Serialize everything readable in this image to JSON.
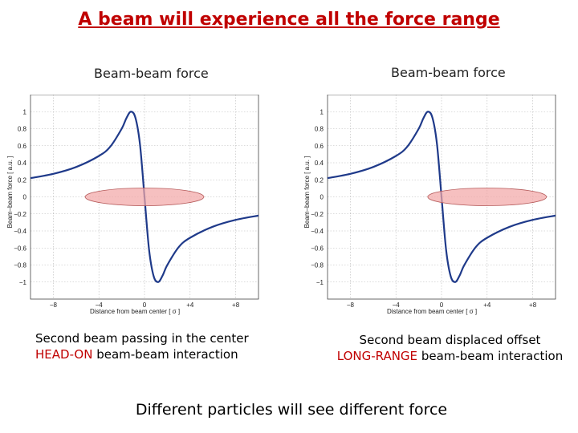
{
  "title": "A beam will experience all the force range",
  "footer": "Different particles will see different force",
  "panels": [
    {
      "title": "Beam-beam force",
      "caption_line1": "Second beam passing in the center",
      "caption_highlight": "HEAD-ON",
      "caption_rest": " beam-beam interaction"
    },
    {
      "title": "Beam-beam force",
      "caption_line1": "Second beam displaced offset",
      "caption_highlight": "LONG-RANGE",
      "caption_rest": " beam-beam interaction"
    }
  ],
  "chart_data": [
    {
      "type": "line",
      "title": "Beam-beam force",
      "xlabel": "Distance from beam center [ σ ]",
      "ylabel": "Beam–beam force [ a.u. ]",
      "xlim": [
        -10,
        10
      ],
      "ylim": [
        -1.2,
        1.2
      ],
      "grid": true,
      "xticks": [
        -8,
        -4,
        0,
        4,
        8
      ],
      "xtick_labels": [
        "−8",
        "−4",
        "0",
        "+4",
        "+8"
      ],
      "yticks": [
        1,
        0.8,
        0.6,
        0.4,
        0.2,
        0,
        -0.2,
        -0.4,
        -0.6,
        -0.8,
        -1
      ],
      "ytick_labels": [
        "1",
        "0.8",
        "0.6",
        "0.4",
        "0.2",
        "0",
        "−0.2",
        "−0.4",
        "−0.6",
        "−0.8",
        "−1"
      ],
      "series": [
        {
          "x": [
            -10,
            -8,
            -6,
            -4,
            -3,
            -2,
            -1.6,
            -1.2,
            -0.8,
            -0.4,
            0,
            0.4,
            0.8,
            1.2,
            1.6,
            2,
            3,
            4,
            6,
            8,
            10
          ],
          "y": [
            0.22,
            0.27,
            0.35,
            0.48,
            0.59,
            0.8,
            0.92,
            1.0,
            0.93,
            0.62,
            0.0,
            -0.62,
            -0.93,
            -1.0,
            -0.92,
            -0.8,
            -0.59,
            -0.48,
            -0.35,
            -0.27,
            -0.22
          ],
          "color": "#1f3a8a"
        }
      ],
      "beam": {
        "center_x": 0,
        "center_y": 0,
        "color": "#f2a7a7"
      }
    },
    {
      "type": "line",
      "title": "Beam-beam force",
      "xlabel": "Distance from beam center [ σ ]",
      "ylabel": "Beam–beam force [ a.u. ]",
      "xlim": [
        -10,
        10
      ],
      "ylim": [
        -1.2,
        1.2
      ],
      "grid": true,
      "xticks": [
        -8,
        -4,
        0,
        4,
        8
      ],
      "xtick_labels": [
        "−8",
        "−4",
        "0",
        "+4",
        "+8"
      ],
      "yticks": [
        1,
        0.8,
        0.6,
        0.4,
        0.2,
        0,
        -0.2,
        -0.4,
        -0.6,
        -0.8,
        -1
      ],
      "ytick_labels": [
        "1",
        "0.8",
        "0.6",
        "0.4",
        "0.2",
        "0",
        "−0.2",
        "−0.4",
        "−0.6",
        "−0.8",
        "−1"
      ],
      "series": [
        {
          "x": [
            -10,
            -8,
            -6,
            -4,
            -3,
            -2,
            -1.6,
            -1.2,
            -0.8,
            -0.4,
            0,
            0.4,
            0.8,
            1.2,
            1.6,
            2,
            3,
            4,
            6,
            8,
            10
          ],
          "y": [
            0.22,
            0.27,
            0.35,
            0.48,
            0.59,
            0.8,
            0.92,
            1.0,
            0.93,
            0.62,
            0.0,
            -0.62,
            -0.93,
            -1.0,
            -0.92,
            -0.8,
            -0.59,
            -0.48,
            -0.35,
            -0.27,
            -0.22
          ],
          "color": "#1f3a8a"
        }
      ],
      "beam": {
        "center_x": 4,
        "center_y": 0,
        "color": "#f2a7a7"
      }
    }
  ]
}
